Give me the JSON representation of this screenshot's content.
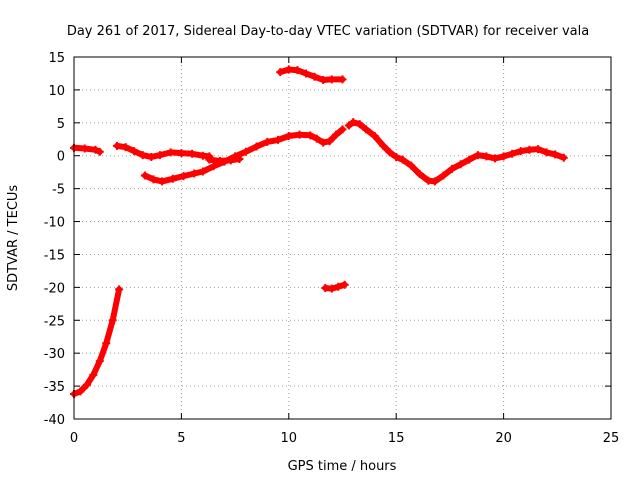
{
  "chart_data": {
    "type": "scatter",
    "title": "Day 261 of 2017, Sidereal Day-to-day VTEC variation (SDTVAR) for receiver vala",
    "xlabel": "GPS time / hours",
    "ylabel": "SDTVAR / TECUs",
    "xlim": [
      0,
      25
    ],
    "ylim": [
      -40,
      15
    ],
    "xticks": [
      "0",
      "5",
      "10",
      "15",
      "20",
      "25"
    ],
    "yticks": [
      "15",
      "10",
      "5",
      "0",
      "-5",
      "-10",
      "-15",
      "-20",
      "-25",
      "-30",
      "-35",
      "-40"
    ],
    "grid": true,
    "series": [
      {
        "name": "SDTVAR",
        "color": "#ff0000",
        "marker": "plus",
        "segments": [
          [
            [
              0.0,
              -36.2
            ],
            [
              0.3,
              -35.8
            ],
            [
              0.6,
              -34.8
            ],
            [
              0.9,
              -33.3
            ],
            [
              1.2,
              -31.2
            ],
            [
              1.5,
              -28.5
            ],
            [
              1.8,
              -25.0
            ],
            [
              2.1,
              -20.3
            ]
          ],
          [
            [
              0.0,
              1.2
            ],
            [
              0.5,
              1.1
            ],
            [
              1.0,
              0.9
            ],
            [
              1.2,
              0.6
            ]
          ],
          [
            [
              2.0,
              1.5
            ],
            [
              2.4,
              1.3
            ],
            [
              2.8,
              0.7
            ],
            [
              3.2,
              0.1
            ],
            [
              3.6,
              -0.2
            ],
            [
              4.0,
              0.1
            ],
            [
              4.5,
              0.5
            ],
            [
              5.0,
              0.4
            ],
            [
              5.5,
              0.3
            ],
            [
              6.0,
              0.0
            ],
            [
              6.3,
              -0.1
            ]
          ],
          [
            [
              3.3,
              -3.0
            ],
            [
              3.7,
              -3.6
            ],
            [
              4.1,
              -3.9
            ],
            [
              4.6,
              -3.5
            ],
            [
              5.1,
              -3.1
            ],
            [
              5.6,
              -2.7
            ],
            [
              6.0,
              -2.4
            ],
            [
              6.5,
              -1.6
            ],
            [
              7.0,
              -0.9
            ],
            [
              7.5,
              -0.1
            ],
            [
              8.0,
              0.6
            ],
            [
              8.5,
              1.4
            ],
            [
              9.0,
              2.1
            ],
            [
              9.5,
              2.4
            ],
            [
              10.0,
              3.0
            ],
            [
              10.5,
              3.2
            ],
            [
              11.0,
              3.1
            ],
            [
              11.3,
              2.6
            ],
            [
              11.6,
              2.0
            ],
            [
              11.9,
              2.2
            ],
            [
              12.2,
              3.2
            ],
            [
              12.5,
              4.0
            ]
          ],
          [
            [
              6.3,
              -0.6
            ],
            [
              6.8,
              -0.8
            ],
            [
              7.3,
              -0.7
            ],
            [
              7.7,
              -0.5
            ]
          ],
          [
            [
              9.6,
              12.7
            ],
            [
              10.0,
              13.1
            ],
            [
              10.4,
              13.0
            ],
            [
              10.8,
              12.5
            ],
            [
              11.2,
              12.0
            ],
            [
              11.6,
              11.5
            ],
            [
              12.0,
              11.6
            ],
            [
              12.5,
              11.6
            ]
          ],
          [
            [
              11.7,
              -20.1
            ],
            [
              12.0,
              -20.2
            ],
            [
              12.3,
              -19.9
            ],
            [
              12.6,
              -19.6
            ]
          ],
          [
            [
              12.8,
              4.6
            ],
            [
              13.0,
              5.1
            ],
            [
              13.3,
              4.8
            ],
            [
              13.6,
              4.0
            ],
            [
              14.0,
              3.0
            ],
            [
              14.4,
              1.5
            ],
            [
              14.7,
              0.5
            ],
            [
              15.0,
              -0.2
            ],
            [
              15.3,
              -0.6
            ],
            [
              15.7,
              -1.5
            ],
            [
              16.1,
              -2.8
            ],
            [
              16.5,
              -3.8
            ],
            [
              16.8,
              -3.9
            ],
            [
              17.2,
              -3.0
            ],
            [
              17.6,
              -2.0
            ],
            [
              18.0,
              -1.3
            ],
            [
              18.4,
              -0.6
            ],
            [
              18.8,
              0.1
            ],
            [
              19.2,
              -0.1
            ],
            [
              19.6,
              -0.4
            ],
            [
              20.0,
              -0.1
            ],
            [
              20.4,
              0.3
            ],
            [
              20.8,
              0.7
            ],
            [
              21.2,
              0.9
            ],
            [
              21.6,
              1.0
            ],
            [
              22.0,
              0.5
            ],
            [
              22.4,
              0.2
            ],
            [
              22.8,
              -0.3
            ]
          ]
        ]
      }
    ]
  }
}
